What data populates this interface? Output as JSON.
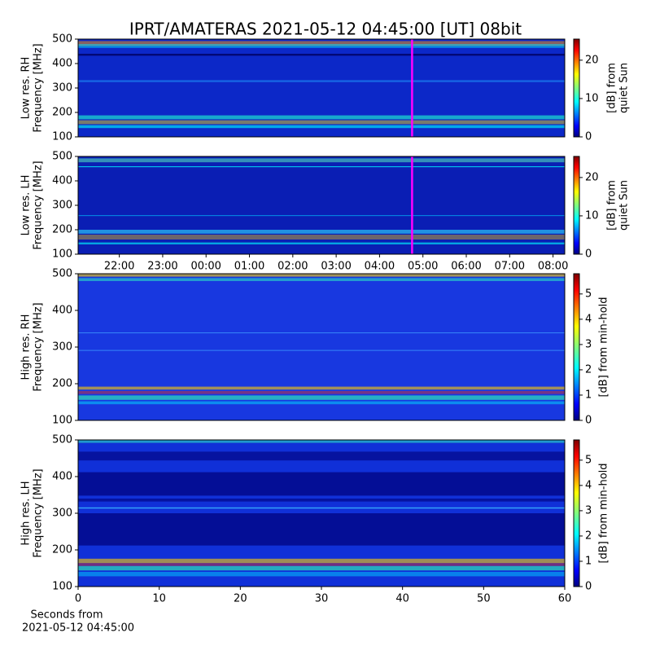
{
  "title": "IPRT/AMATERAS 2021-05-12 04:45:00 [UT]   08bit",
  "chart_data": [
    {
      "type": "heatmap",
      "ylabel": [
        "Low res. RH",
        "Frequency [MHz]"
      ],
      "ylim": [
        100,
        500
      ],
      "yticks": [
        100,
        200,
        300,
        400,
        500
      ],
      "xlim": [
        21.05,
        32.27
      ],
      "marker_line": {
        "value": 28.75,
        "color": "#ff00ff"
      },
      "clim": [
        0,
        25.5
      ],
      "cticks": [
        0,
        10,
        20
      ],
      "clabel": [
        "[dB] from",
        "quiet Sun"
      ],
      "colormap": "jet"
    },
    {
      "type": "heatmap",
      "ylabel": [
        "Low res. LH",
        "Frequency [MHz]"
      ],
      "ylim": [
        100,
        500
      ],
      "yticks": [
        100,
        200,
        300,
        400,
        500
      ],
      "xlim": [
        21.05,
        32.27
      ],
      "marker_line": {
        "value": 28.75,
        "color": "#ff00ff"
      },
      "xticks": [
        {
          "value": 22,
          "label": "22:00"
        },
        {
          "value": 23,
          "label": "23:00"
        },
        {
          "value": 24,
          "label": "00:00"
        },
        {
          "value": 25,
          "label": "01:00"
        },
        {
          "value": 26,
          "label": "02:00"
        },
        {
          "value": 27,
          "label": "03:00"
        },
        {
          "value": 28,
          "label": "04:00"
        },
        {
          "value": 29,
          "label": "05:00"
        },
        {
          "value": 30,
          "label": "06:00"
        },
        {
          "value": 31,
          "label": "07:00"
        },
        {
          "value": 32,
          "label": "08:00"
        }
      ],
      "clim": [
        0,
        25.5
      ],
      "cticks": [
        0,
        10,
        20
      ],
      "clabel": [
        "[dB] from",
        "quiet Sun"
      ],
      "colormap": "jet"
    },
    {
      "type": "heatmap",
      "ylabel": [
        "High res. RH",
        "Frequency [MHz]"
      ],
      "ylim": [
        100,
        500
      ],
      "yticks": [
        100,
        200,
        300,
        400,
        500
      ],
      "xlim": [
        0,
        60
      ],
      "clim": [
        0,
        5.8
      ],
      "cticks": [
        0,
        1,
        2,
        3,
        4,
        5
      ],
      "clabel": [
        "[dB] from min-hold"
      ],
      "colormap": "jet"
    },
    {
      "type": "heatmap",
      "ylabel": [
        "High res. LH",
        "Frequency [MHz]"
      ],
      "ylim": [
        100,
        500
      ],
      "yticks": [
        100,
        200,
        300,
        400,
        500
      ],
      "xlim": [
        0,
        60
      ],
      "xticks": [
        0,
        10,
        20,
        30,
        40,
        50,
        60
      ],
      "xlabel": [
        "Seconds from",
        "2021-05-12 04:45:00"
      ],
      "clim": [
        0,
        5.8
      ],
      "cticks": [
        0,
        1,
        2,
        3,
        4,
        5
      ],
      "clabel": [
        "[dB] from min-hold"
      ],
      "colormap": "jet"
    }
  ]
}
